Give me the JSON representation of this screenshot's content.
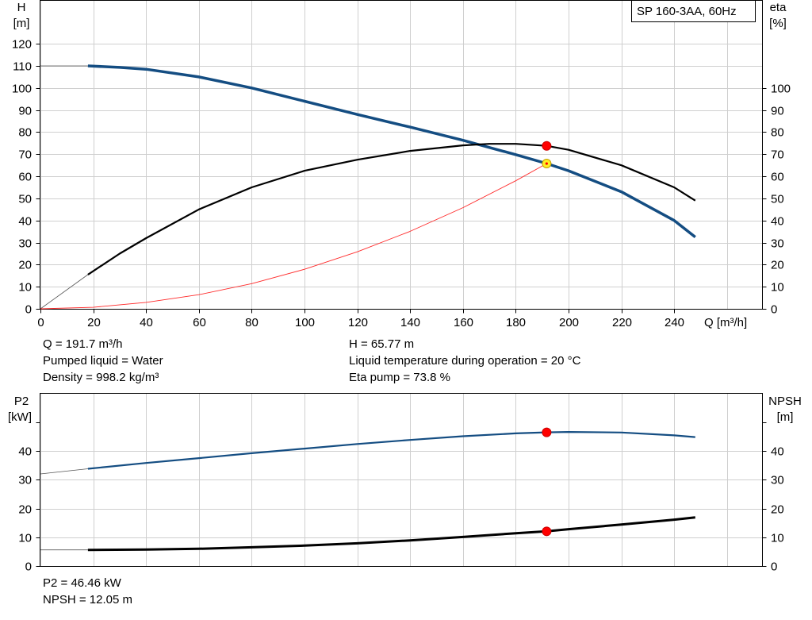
{
  "legend_title": "SP 160-3AA, 60Hz",
  "top_chart": {
    "type": "line",
    "xlabel": "Q [m³/h]",
    "ylabel_left": [
      "H",
      "[m]"
    ],
    "ylabel_right": [
      "eta",
      "[%]"
    ],
    "xlim": [
      0,
      270
    ],
    "ylim": [
      0,
      130
    ],
    "x_ticks": [
      "0",
      "20",
      "40",
      "60",
      "80",
      "100",
      "120",
      "140",
      "160",
      "180",
      "200",
      "220",
      "240"
    ],
    "y_ticks_left": [
      "0",
      "10",
      "20",
      "30",
      "40",
      "50",
      "60",
      "70",
      "80",
      "90",
      "100",
      "110",
      "120"
    ],
    "y_ticks_right": [
      "0",
      "10",
      "20",
      "30",
      "40",
      "50",
      "60",
      "70",
      "80",
      "90",
      "100"
    ],
    "grid": true,
    "curve_colors": {
      "head": "#144d82",
      "eta": "#000000",
      "system": "#ff2a2a",
      "thin": "#555555"
    },
    "series": [
      {
        "id": "head",
        "axis": "left",
        "thin_from_origin": true,
        "x": [
          18,
          30,
          40,
          60,
          80,
          100,
          120,
          140,
          160,
          180,
          191.7,
          200,
          220,
          240,
          248
        ],
        "y": [
          110,
          109.3,
          108.5,
          105,
          100,
          94,
          88,
          82.3,
          76.3,
          69.8,
          65.77,
          62.5,
          53,
          40,
          32.5
        ]
      },
      {
        "id": "eta",
        "axis": "right",
        "thin_from_origin": true,
        "x": [
          18,
          30,
          40,
          60,
          80,
          100,
          120,
          140,
          160,
          170,
          180,
          191.7,
          200,
          220,
          240,
          248
        ],
        "y": [
          15.5,
          25,
          32,
          45,
          55,
          62.5,
          67.5,
          71.5,
          74,
          74.7,
          74.7,
          73.8,
          72,
          65,
          55,
          49
        ]
      },
      {
        "id": "system",
        "axis": "left",
        "x": [
          0,
          20,
          40,
          60,
          80,
          100,
          120,
          140,
          160,
          180,
          191.7
        ],
        "y": [
          0,
          0.7,
          2.9,
          6.4,
          11.4,
          17.9,
          25.8,
          35.1,
          45.8,
          58,
          65.77
        ]
      }
    ],
    "operating_points": [
      {
        "series": "eta",
        "x": 191.7,
        "y": 73.8,
        "color": "#ff0000"
      },
      {
        "series": "head",
        "x": 191.7,
        "y": 65.77,
        "color": "#ffee22"
      }
    ]
  },
  "top_info": {
    "left": [
      "Q = 191.7 m³/h",
      "Pumped liquid = Water",
      "Density = 998.2 kg/m³"
    ],
    "right": [
      "H = 65.77 m",
      "Liquid temperature during operation = 20 °C",
      "Eta pump = 73.8 %"
    ]
  },
  "bottom_chart": {
    "type": "line",
    "ylabel_left": [
      "P2",
      "[kW]"
    ],
    "ylabel_right": [
      "NPSH",
      "[m]"
    ],
    "xlim": [
      0,
      270
    ],
    "ylim": [
      0,
      50
    ],
    "y_ticks_left": [
      "0",
      "10",
      "20",
      "30",
      "40"
    ],
    "y_ticks_right": [
      "0",
      "10",
      "20",
      "30",
      "40"
    ],
    "grid": true,
    "curve_colors": {
      "p2": "#144d82",
      "npsh": "#000000",
      "thin": "#555555"
    },
    "series": [
      {
        "id": "p2",
        "axis": "left",
        "thin_from_origin": true,
        "origin_y": 32,
        "x": [
          18,
          40,
          60,
          80,
          100,
          120,
          140,
          160,
          180,
          191.7,
          200,
          220,
          240,
          248
        ],
        "y": [
          33.8,
          35.8,
          37.5,
          39.2,
          40.8,
          42.4,
          43.8,
          45.1,
          46.1,
          46.46,
          46.6,
          46.4,
          45.4,
          44.8
        ]
      },
      {
        "id": "npsh",
        "axis": "right",
        "thin_from_origin": true,
        "origin_y": 5.6,
        "x": [
          18,
          40,
          60,
          80,
          100,
          120,
          140,
          160,
          180,
          191.7,
          200,
          220,
          240,
          248
        ],
        "y": [
          5.6,
          5.7,
          6.0,
          6.5,
          7.1,
          7.9,
          8.9,
          10.1,
          11.4,
          12.05,
          12.8,
          14.4,
          16.1,
          16.9
        ]
      }
    ],
    "operating_points": [
      {
        "series": "p2",
        "x": 191.7,
        "y": 46.46,
        "color": "#ff0000"
      },
      {
        "series": "npsh",
        "x": 191.7,
        "y": 12.05,
        "color": "#ff0000"
      }
    ]
  },
  "bottom_info": [
    "P2 = 46.46 kW",
    "NPSH = 12.05 m"
  ]
}
